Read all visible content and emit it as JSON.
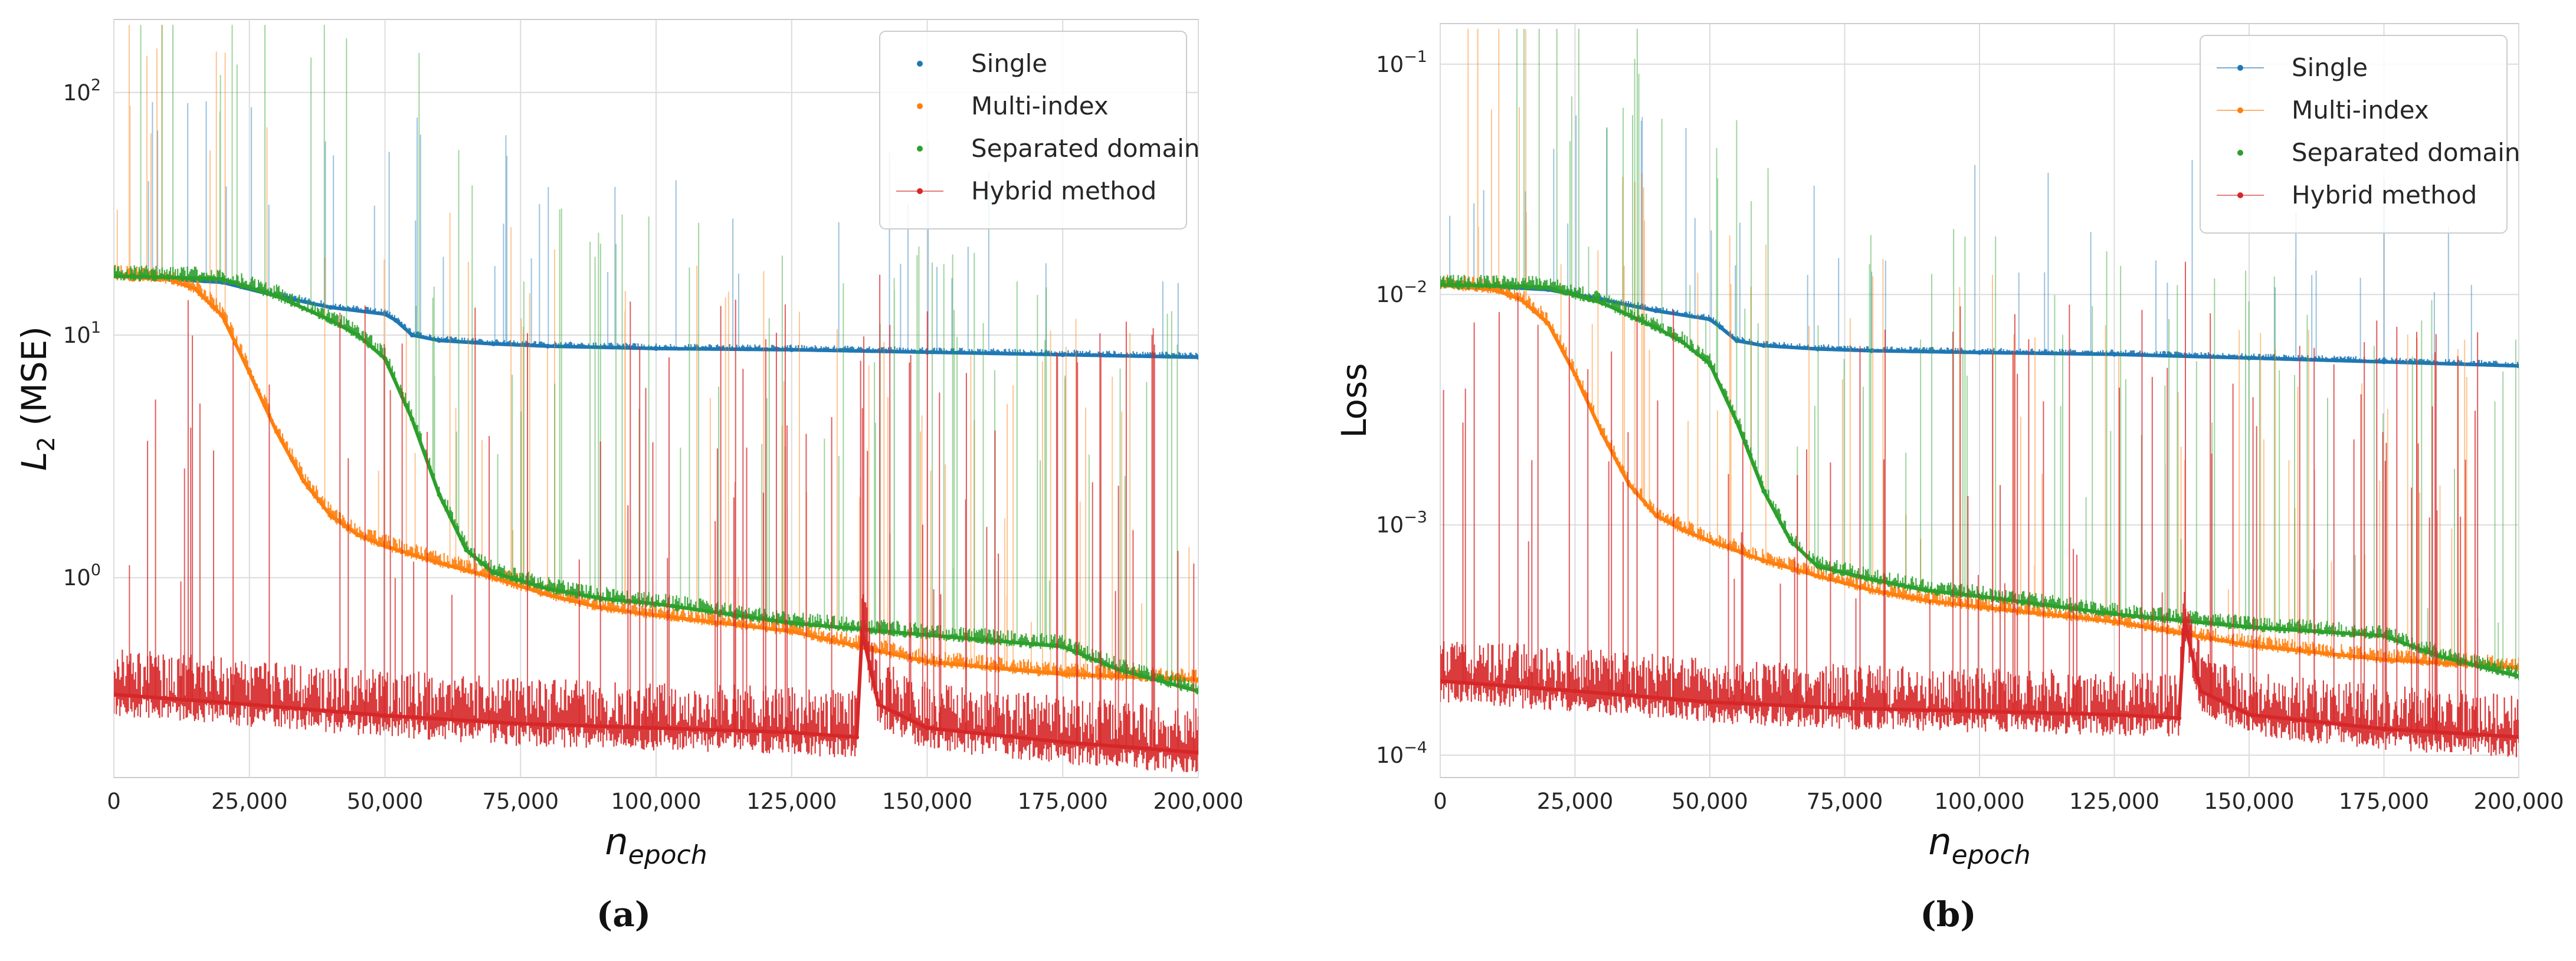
{
  "chart_data": [
    {
      "type": "line",
      "panel_label": "(a)",
      "title": "",
      "xlabel": "n",
      "xlabel_sub": "epoch",
      "ylabel": "L",
      "ylabel_sub": "2",
      "ylabel_suffix": " (MSE)",
      "xlim": [
        0,
        200000
      ],
      "ylim": [
        0.15,
        200
      ],
      "yscale": "log",
      "grid": true,
      "legend": "top-right",
      "x_ticks": [
        0,
        25000,
        50000,
        75000,
        100000,
        125000,
        150000,
        175000,
        200000
      ],
      "x_tick_labels": [
        "0",
        "25,000",
        "50,000",
        "75,000",
        "100,000",
        "125,000",
        "150,000",
        "175,000",
        "200,000"
      ],
      "y_ticks": [
        1,
        10,
        100
      ],
      "y_tick_labels": [
        {
          "base": "10",
          "exp": "0"
        },
        {
          "base": "10",
          "exp": "1"
        },
        {
          "base": "10",
          "exp": "2"
        }
      ],
      "series": [
        {
          "name": "Single",
          "color": "#1f77b4",
          "x": [
            0,
            10000,
            20000,
            30000,
            40000,
            50000,
            52000,
            55000,
            60000,
            70000,
            80000,
            100000,
            125000,
            150000,
            175000,
            200000
          ],
          "y": [
            17.5,
            17.0,
            16.5,
            14.5,
            13.0,
            12.2,
            11.5,
            10.0,
            9.5,
            9.2,
            9.0,
            8.8,
            8.7,
            8.5,
            8.3,
            8.1
          ]
        },
        {
          "name": "Multi-index",
          "color": "#ff7f0e",
          "x": [
            0,
            10000,
            15000,
            20000,
            25000,
            30000,
            35000,
            40000,
            45000,
            50000,
            60000,
            70000,
            80000,
            90000,
            100000,
            125000,
            150000,
            175000,
            200000
          ],
          "y": [
            17.5,
            17.0,
            15.5,
            12.0,
            7.0,
            4.0,
            2.5,
            1.8,
            1.5,
            1.35,
            1.15,
            1.0,
            0.85,
            0.75,
            0.7,
            0.6,
            0.45,
            0.4,
            0.38
          ]
        },
        {
          "name": "Separated domain",
          "color": "#2ca02c",
          "x": [
            0,
            10000,
            20000,
            30000,
            40000,
            45000,
            50000,
            55000,
            60000,
            65000,
            70000,
            80000,
            90000,
            100000,
            125000,
            150000,
            175000,
            185000,
            200000
          ],
          "y": [
            17.5,
            17.3,
            17.0,
            14.5,
            11.5,
            10.0,
            8.0,
            4.5,
            2.2,
            1.3,
            1.05,
            0.9,
            0.82,
            0.78,
            0.65,
            0.58,
            0.52,
            0.42,
            0.34
          ]
        },
        {
          "name": "Hybrid method",
          "color": "#d62728",
          "x": [
            0,
            25000,
            50000,
            75000,
            100000,
            125000,
            137000,
            138000,
            141000,
            150000,
            175000,
            200000
          ],
          "y": [
            0.33,
            0.3,
            0.27,
            0.25,
            0.24,
            0.23,
            0.22,
            0.6,
            0.3,
            0.24,
            0.21,
            0.19
          ]
        }
      ]
    },
    {
      "type": "line",
      "panel_label": "(b)",
      "title": "",
      "xlabel": "n",
      "xlabel_sub": "epoch",
      "ylabel": "Loss",
      "ylabel_sub": "",
      "ylabel_suffix": "",
      "xlim": [
        0,
        200000
      ],
      "ylim": [
        8e-05,
        0.15
      ],
      "yscale": "log",
      "grid": true,
      "legend": "top-right",
      "x_ticks": [
        0,
        25000,
        50000,
        75000,
        100000,
        125000,
        150000,
        175000,
        200000
      ],
      "x_tick_labels": [
        "0",
        "25,000",
        "50,000",
        "75,000",
        "100,000",
        "125,000",
        "150,000",
        "175,000",
        "200,000"
      ],
      "y_ticks": [
        0.0001,
        0.001,
        0.01,
        0.1
      ],
      "y_tick_labels": [
        {
          "base": "10",
          "exp": "−4"
        },
        {
          "base": "10",
          "exp": "−3"
        },
        {
          "base": "10",
          "exp": "−2"
        },
        {
          "base": "10",
          "exp": "−1"
        }
      ],
      "series": [
        {
          "name": "Single",
          "color": "#1f77b4",
          "x": [
            0,
            10000,
            20000,
            30000,
            40000,
            50000,
            52000,
            55000,
            60000,
            70000,
            80000,
            100000,
            125000,
            150000,
            175000,
            200000
          ],
          "y": [
            0.011,
            0.0108,
            0.0105,
            0.0095,
            0.0085,
            0.0078,
            0.0072,
            0.0063,
            0.006,
            0.0058,
            0.0057,
            0.0056,
            0.0055,
            0.0053,
            0.0051,
            0.0049
          ]
        },
        {
          "name": "Multi-index",
          "color": "#ff7f0e",
          "x": [
            0,
            10000,
            15000,
            20000,
            25000,
            30000,
            35000,
            40000,
            45000,
            50000,
            60000,
            70000,
            80000,
            90000,
            100000,
            125000,
            150000,
            175000,
            200000
          ],
          "y": [
            0.011,
            0.0105,
            0.0095,
            0.0075,
            0.0045,
            0.0025,
            0.0015,
            0.0011,
            0.00095,
            0.00085,
            0.0007,
            0.0006,
            0.00052,
            0.00047,
            0.00044,
            0.00038,
            0.0003,
            0.00026,
            0.00024
          ]
        },
        {
          "name": "Separated domain",
          "color": "#2ca02c",
          "x": [
            0,
            10000,
            20000,
            30000,
            40000,
            45000,
            50000,
            55000,
            60000,
            65000,
            70000,
            80000,
            90000,
            100000,
            125000,
            150000,
            175000,
            185000,
            200000
          ],
          "y": [
            0.011,
            0.0109,
            0.0107,
            0.0092,
            0.0072,
            0.0062,
            0.005,
            0.0028,
            0.0014,
            0.00085,
            0.00066,
            0.00058,
            0.00052,
            0.00049,
            0.00041,
            0.00036,
            0.00033,
            0.00027,
            0.00022
          ]
        },
        {
          "name": "Hybrid method",
          "color": "#d62728",
          "x": [
            0,
            25000,
            50000,
            75000,
            100000,
            125000,
            137000,
            138000,
            141000,
            150000,
            175000,
            200000
          ],
          "y": [
            0.00021,
            0.00019,
            0.00017,
            0.00016,
            0.000155,
            0.00015,
            0.000145,
            0.00038,
            0.00019,
            0.00015,
            0.00013,
            0.00012
          ]
        }
      ]
    }
  ]
}
